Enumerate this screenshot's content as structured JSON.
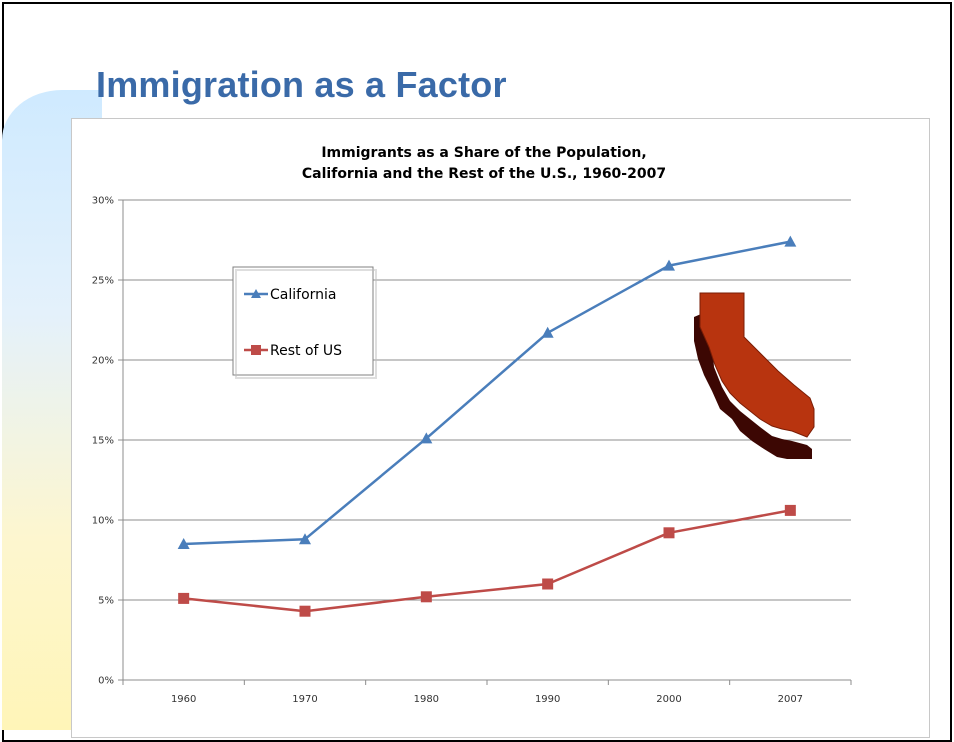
{
  "slide": {
    "title": "Immigration as a Factor"
  },
  "chart_data": {
    "type": "line",
    "title_lines": [
      "Immigrants as a Share of the Population,",
      "California and the Rest of the U.S., 1960-2007"
    ],
    "categories": [
      "1960",
      "1970",
      "1980",
      "1990",
      "2000",
      "2007"
    ],
    "y_ticks": [
      "0%",
      "5%",
      "10%",
      "15%",
      "20%",
      "25%",
      "30%"
    ],
    "ylim": [
      0,
      30
    ],
    "grid": true,
    "legend_position": "left",
    "series": [
      {
        "name": "California",
        "marker": "triangle",
        "color": "#4a7ebb",
        "values": [
          8.5,
          8.8,
          15.1,
          21.7,
          25.9,
          27.4
        ]
      },
      {
        "name": "Rest of US",
        "marker": "square",
        "color": "#be4b48",
        "values": [
          5.1,
          4.3,
          5.2,
          6.0,
          9.2,
          10.6
        ]
      }
    ]
  },
  "decoration": {
    "state_shape": "california-map-icon",
    "state_color": "#b8340f"
  }
}
